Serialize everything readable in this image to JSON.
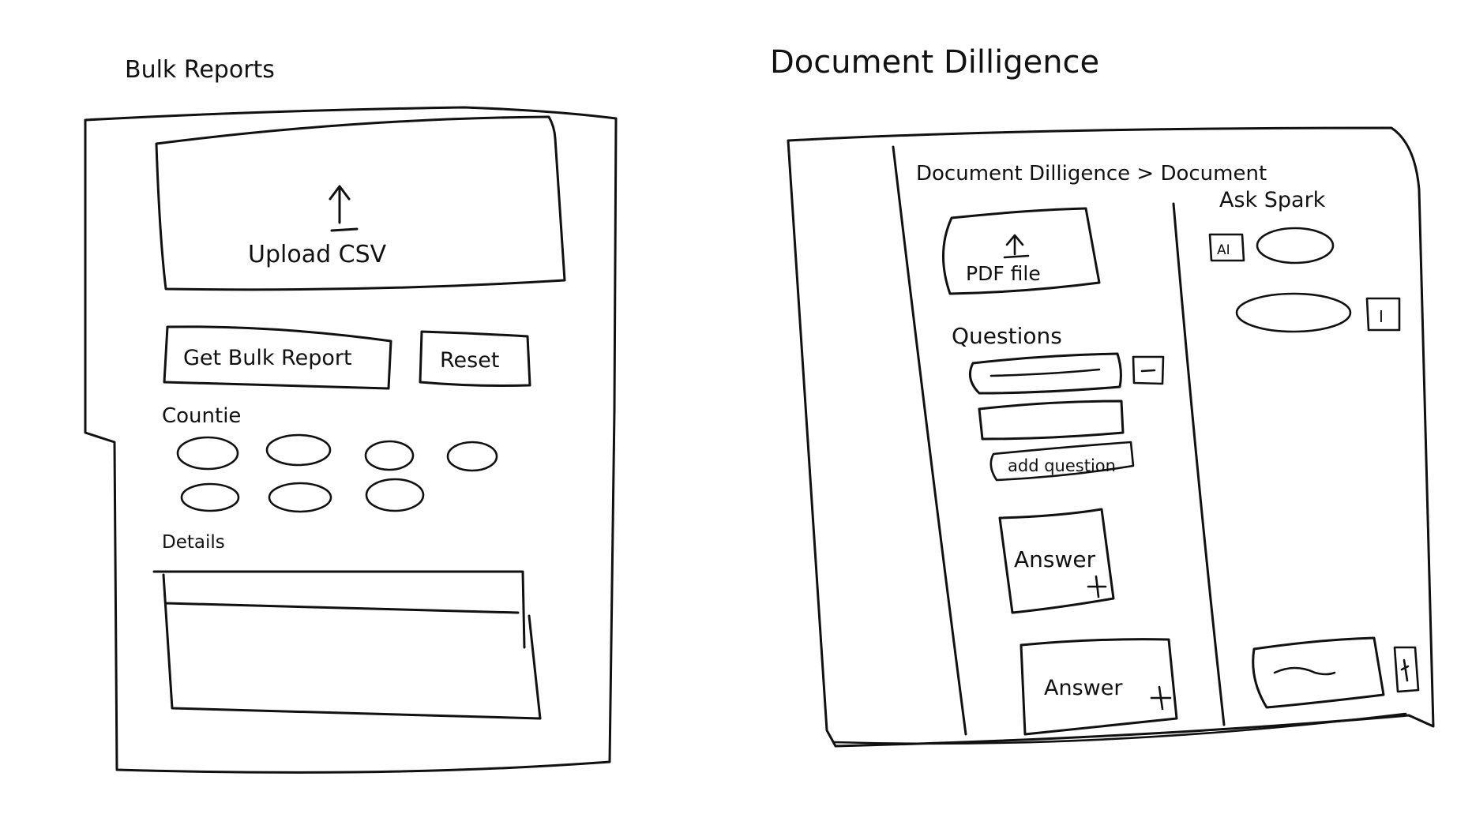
{
  "bulk_reports": {
    "title": "Bulk Reports",
    "upload_label": "Upload CSV",
    "get_report_button": "Get Bulk Report",
    "reset_button": "Reset",
    "counties_label": "Countie",
    "details_label": "Details"
  },
  "document_diligence": {
    "title": "Document Dilligence",
    "breadcrumb": "Document Dilligence > Document",
    "pdf_upload_label": "PDF file",
    "questions_label": "Questions",
    "add_question_button": "add question",
    "answers": [
      "Answer",
      "Answer"
    ],
    "ask_spark_label": "Ask Spark",
    "avatar_ai": "AI",
    "avatar_user": "I"
  }
}
